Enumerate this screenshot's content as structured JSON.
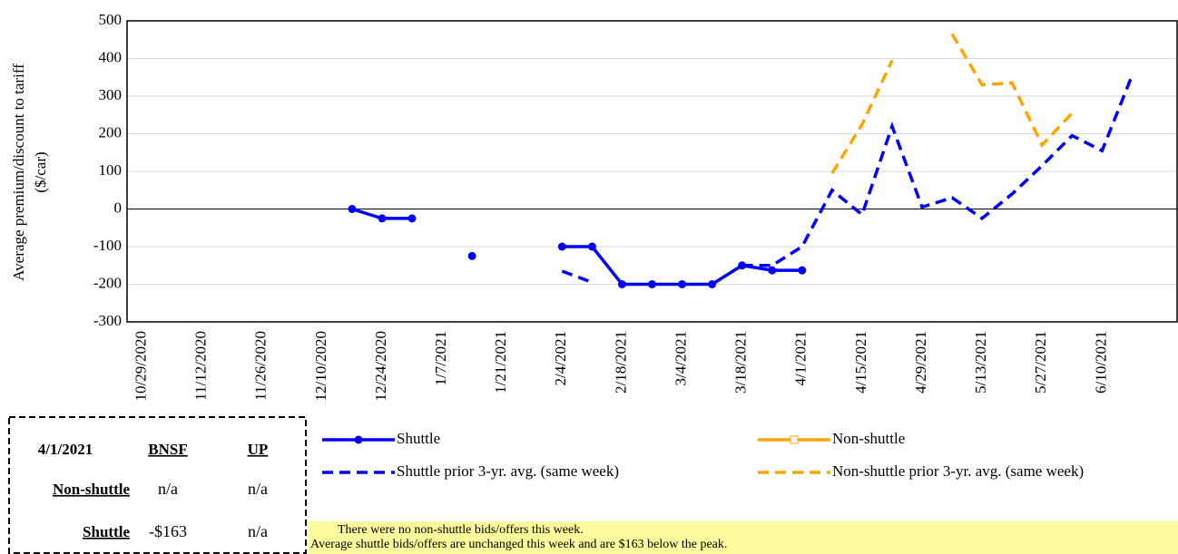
{
  "chart_data": {
    "type": "line",
    "ylabel": [
      "Average premium/discount  to tariff",
      "($/car)"
    ],
    "categories": [
      "10/29/2020",
      null,
      "11/12/2020",
      null,
      "11/26/2020",
      null,
      "12/10/2020",
      null,
      "12/24/2020",
      null,
      "1/7/2021",
      null,
      "1/21/2021",
      null,
      "2/4/2021",
      null,
      "2/18/2021",
      null,
      "3/4/2021",
      null,
      "3/18/2021",
      null,
      "4/1/2021",
      null,
      "4/15/2021",
      null,
      "4/29/2021",
      null,
      "5/13/2021",
      null,
      "5/27/2021",
      null,
      "6/10/2021",
      null,
      null
    ],
    "series": [
      {
        "name": "Shuttle",
        "color": "#0000ff",
        "dashed": false,
        "marker": "circle",
        "values": [
          null,
          null,
          null,
          null,
          null,
          null,
          null,
          0,
          -25,
          -25,
          null,
          -125,
          null,
          null,
          -100,
          -100,
          -200,
          -200,
          -200,
          -200,
          -150,
          -163,
          -163,
          null,
          null,
          null,
          null,
          null,
          null,
          null,
          null,
          null,
          null,
          null,
          null
        ]
      },
      {
        "name": "Non-shuttle",
        "color": "#ffa500",
        "dashed": false,
        "marker": "square",
        "values": [
          null,
          null,
          null,
          null,
          null,
          null,
          null,
          null,
          null,
          null,
          null,
          null,
          null,
          null,
          null,
          null,
          null,
          null,
          null,
          null,
          null,
          null,
          null,
          null,
          null,
          null,
          null,
          null,
          null,
          null,
          null,
          null,
          null,
          null,
          null
        ]
      },
      {
        "name": "Shuttle prior 3-yr. avg. (same week)",
        "color": "#0000ff",
        "dashed": true,
        "marker": null,
        "values": [
          null,
          null,
          null,
          null,
          null,
          null,
          null,
          null,
          null,
          null,
          null,
          null,
          null,
          null,
          -165,
          -195,
          null,
          null,
          null,
          null,
          -150,
          -150,
          -100,
          50,
          -15,
          220,
          5,
          30,
          -25,
          40,
          115,
          195,
          155,
          355,
          null
        ]
      },
      {
        "name": "Non-shuttle prior 3-yr. avg. (same week)",
        "color": "#ffa500",
        "dashed": true,
        "marker": null,
        "values": [
          null,
          null,
          null,
          null,
          null,
          null,
          null,
          null,
          null,
          null,
          null,
          null,
          null,
          null,
          null,
          null,
          null,
          null,
          null,
          null,
          null,
          null,
          null,
          95,
          225,
          395,
          null,
          465,
          330,
          335,
          170,
          255,
          null,
          null,
          null
        ]
      }
    ],
    "ylim": [
      -300,
      500
    ],
    "yticks": [
      -300,
      -200,
      -100,
      0,
      100,
      200,
      300,
      400,
      500
    ],
    "grid": true
  },
  "table": {
    "header": [
      "4/1/2021",
      "BNSF",
      "UP"
    ],
    "rows": [
      [
        "Non-shuttle",
        "n/a",
        "n/a"
      ],
      [
        "Shuttle",
        "-$163",
        "n/a"
      ]
    ]
  },
  "note": [
    "There were no non-shuttle bids/offers this week.",
    "Average shuttle bids/offers are unchanged this week and are $163 below the peak."
  ]
}
